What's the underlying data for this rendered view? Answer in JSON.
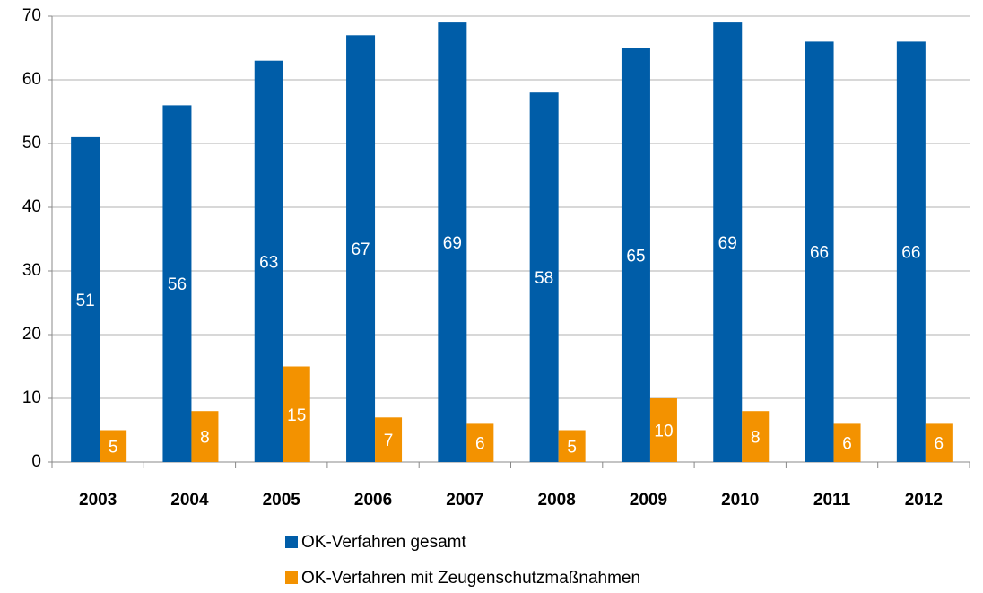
{
  "chart_data": {
    "type": "bar",
    "categories": [
      "2003",
      "2004",
      "2005",
      "2006",
      "2007",
      "2008",
      "2009",
      "2010",
      "2011",
      "2012"
    ],
    "series": [
      {
        "name": "OK-Verfahren gesamt",
        "color": "#005da8",
        "values": [
          51,
          56,
          63,
          67,
          69,
          58,
          65,
          69,
          66,
          66
        ]
      },
      {
        "name": "OK-Verfahren mit Zeugenschutzmaßnahmen",
        "color": "#f39200",
        "values": [
          5,
          8,
          15,
          7,
          6,
          5,
          10,
          8,
          6,
          6
        ]
      }
    ],
    "ylim": [
      0,
      70
    ],
    "yticks": [
      0,
      10,
      20,
      30,
      40,
      50,
      60,
      70
    ],
    "grid": true,
    "legend": "bottom"
  }
}
